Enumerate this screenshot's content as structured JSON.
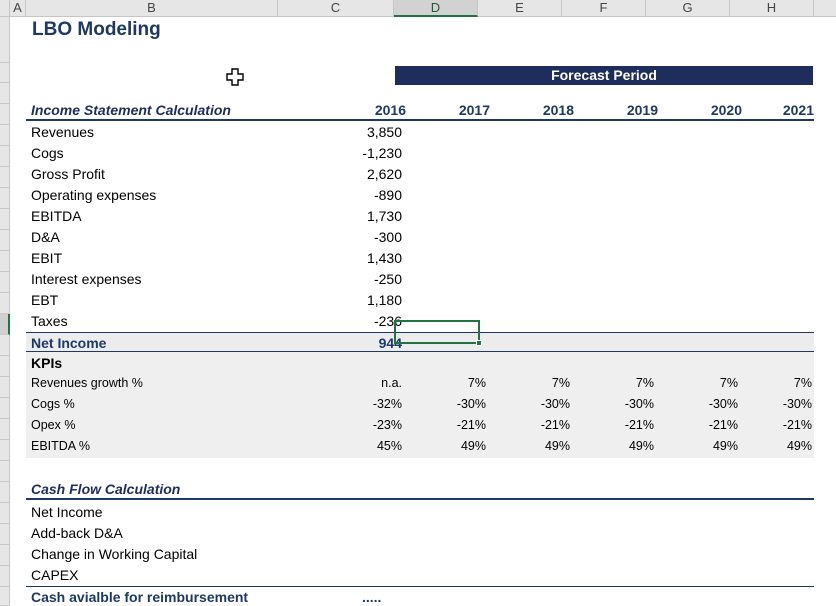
{
  "column_headers": [
    "A",
    "B",
    "C",
    "D",
    "E",
    "F",
    "G",
    "H"
  ],
  "selected_column": "D",
  "title": "LBO Modeling",
  "forecast_label": "Forecast Period",
  "income_statement": {
    "heading": "Income Statement Calculation",
    "years": [
      "2016",
      "2017",
      "2018",
      "2019",
      "2020",
      "2021"
    ],
    "rows": [
      {
        "label": "Revenues",
        "values": [
          "3,850"
        ]
      },
      {
        "label": "Cogs",
        "values": [
          "-1,230"
        ]
      },
      {
        "label": "Gross Profit",
        "values": [
          "2,620"
        ]
      },
      {
        "label": "Operating expenses",
        "values": [
          "-890"
        ]
      },
      {
        "label": "EBITDA",
        "values": [
          "1,730"
        ]
      },
      {
        "label": "D&A",
        "values": [
          "-300"
        ]
      },
      {
        "label": "EBIT",
        "values": [
          "1,430"
        ]
      },
      {
        "label": "Interest expenses",
        "values": [
          "-250"
        ]
      },
      {
        "label": "EBT",
        "values": [
          "1,180"
        ]
      },
      {
        "label": "Taxes",
        "values": [
          "-236"
        ]
      }
    ],
    "net_income": {
      "label": "Net Income",
      "value": "944"
    }
  },
  "kpis": {
    "heading": "KPIs",
    "rows": [
      {
        "label": "Revenues growth %",
        "values": [
          "n.a.",
          "7%",
          "7%",
          "7%",
          "7%",
          "7%"
        ]
      },
      {
        "label": "Cogs %",
        "values": [
          "-32%",
          "-30%",
          "-30%",
          "-30%",
          "-30%",
          "-30%"
        ]
      },
      {
        "label": "Opex %",
        "values": [
          "-23%",
          "-21%",
          "-21%",
          "-21%",
          "-21%",
          "-21%"
        ]
      },
      {
        "label": "EBITDA %",
        "values": [
          "45%",
          "49%",
          "49%",
          "49%",
          "49%",
          "49%"
        ]
      }
    ]
  },
  "cash_flow": {
    "heading": "Cash Flow Calculation",
    "rows": [
      "Net Income",
      "Add-back D&A",
      "Change in Working Capital",
      "CAPEX"
    ],
    "cash_label": "Cash avialble for reimbursement",
    "cash_value": "....."
  },
  "colors": {
    "title": "#1f3864",
    "forecast_band": "#1f2d5c",
    "selection": "#217346"
  }
}
